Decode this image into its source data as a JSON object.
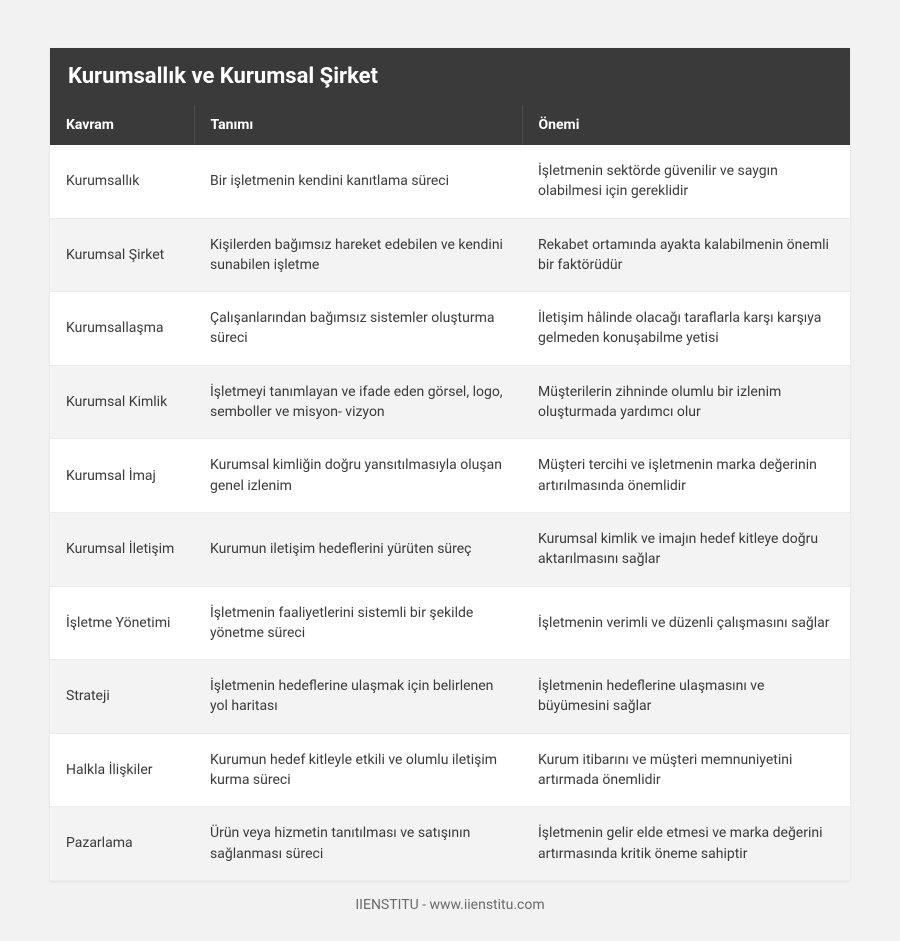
{
  "page": {
    "background_color": "#f2f2f2",
    "panel_background": "#ffffff",
    "header_background": "#3a3a3a",
    "header_text_color": "#ffffff",
    "row_even_background": "#f3f3f3",
    "row_odd_background": "#ffffff",
    "cell_text_color": "#3a3a3a",
    "border_color": "#ececec",
    "footer_text_color": "#6a6a6a",
    "title_fontsize": 22,
    "header_fontsize": 14,
    "cell_fontsize": 14,
    "column_widths_pct": [
      18,
      41,
      41
    ]
  },
  "title": "Kurumsallık ve Kurumsal Şirket",
  "columns": [
    "Kavram",
    "Tanımı",
    "Önemi"
  ],
  "rows": [
    {
      "c0": "Kurumsallık",
      "c1": "Bir işletmenin kendini kanıtlama süreci",
      "c2": "İşletmenin sektörde güvenilir ve saygın olabilmesi için gereklidir"
    },
    {
      "c0": "Kurumsal Şirket",
      "c1": "Kişilerden bağımsız hareket edebilen ve kendini sunabilen işletme",
      "c2": "Rekabet ortamında ayakta kalabilmenin önemli bir faktörüdür"
    },
    {
      "c0": "Kurumsallaşma",
      "c1": "Çalışanlarından bağımsız sistemler oluşturma süreci",
      "c2": "İletişim hâlinde olacağı taraflarla karşı karşıya gelmeden konuşabilme yetisi"
    },
    {
      "c0": "Kurumsal Kimlik",
      "c1": "İşletmeyi tanımlayan ve ifade eden görsel, logo, semboller ve misyon- vizyon",
      "c2": "Müşterilerin zihninde olumlu bir izlenim oluşturmada yardımcı olur"
    },
    {
      "c0": "Kurumsal İmaj",
      "c1": "Kurumsal kimliğin doğru yansıtılmasıyla oluşan genel izlenim",
      "c2": "Müşteri tercihi ve işletmenin marka değerinin artırılmasında önemlidir"
    },
    {
      "c0": "Kurumsal İletişim",
      "c1": "Kurumun iletişim hedeflerini yürüten süreç",
      "c2": "Kurumsal kimlik ve imajın hedef kitleye doğru aktarılmasını sağlar"
    },
    {
      "c0": "İşletme Yönetimi",
      "c1": "İşletmenin faaliyetlerini sistemli bir şekilde yönetme süreci",
      "c2": "İşletmenin verimli ve düzenli çalışmasını sağlar"
    },
    {
      "c0": "Strateji",
      "c1": "İşletmenin hedeflerine ulaşmak için belirlenen yol haritası",
      "c2": "İşletmenin hedeflerine ulaşmasını ve büyümesini sağlar"
    },
    {
      "c0": "Halkla İlişkiler",
      "c1": "Kurumun hedef kitleyle etkili ve olumlu iletişim kurma süreci",
      "c2": "Kurum itibarını ve müşteri memnuniyetini artırmada önemlidir"
    },
    {
      "c0": "Pazarlama",
      "c1": "Ürün veya hizmetin tanıtılması ve satışının sağlanması süreci",
      "c2": "İşletmenin gelir elde etmesi ve marka değerini artırmasında kritik öneme sahiptir"
    }
  ],
  "footer": "IIENSTITU - www.iienstitu.com"
}
